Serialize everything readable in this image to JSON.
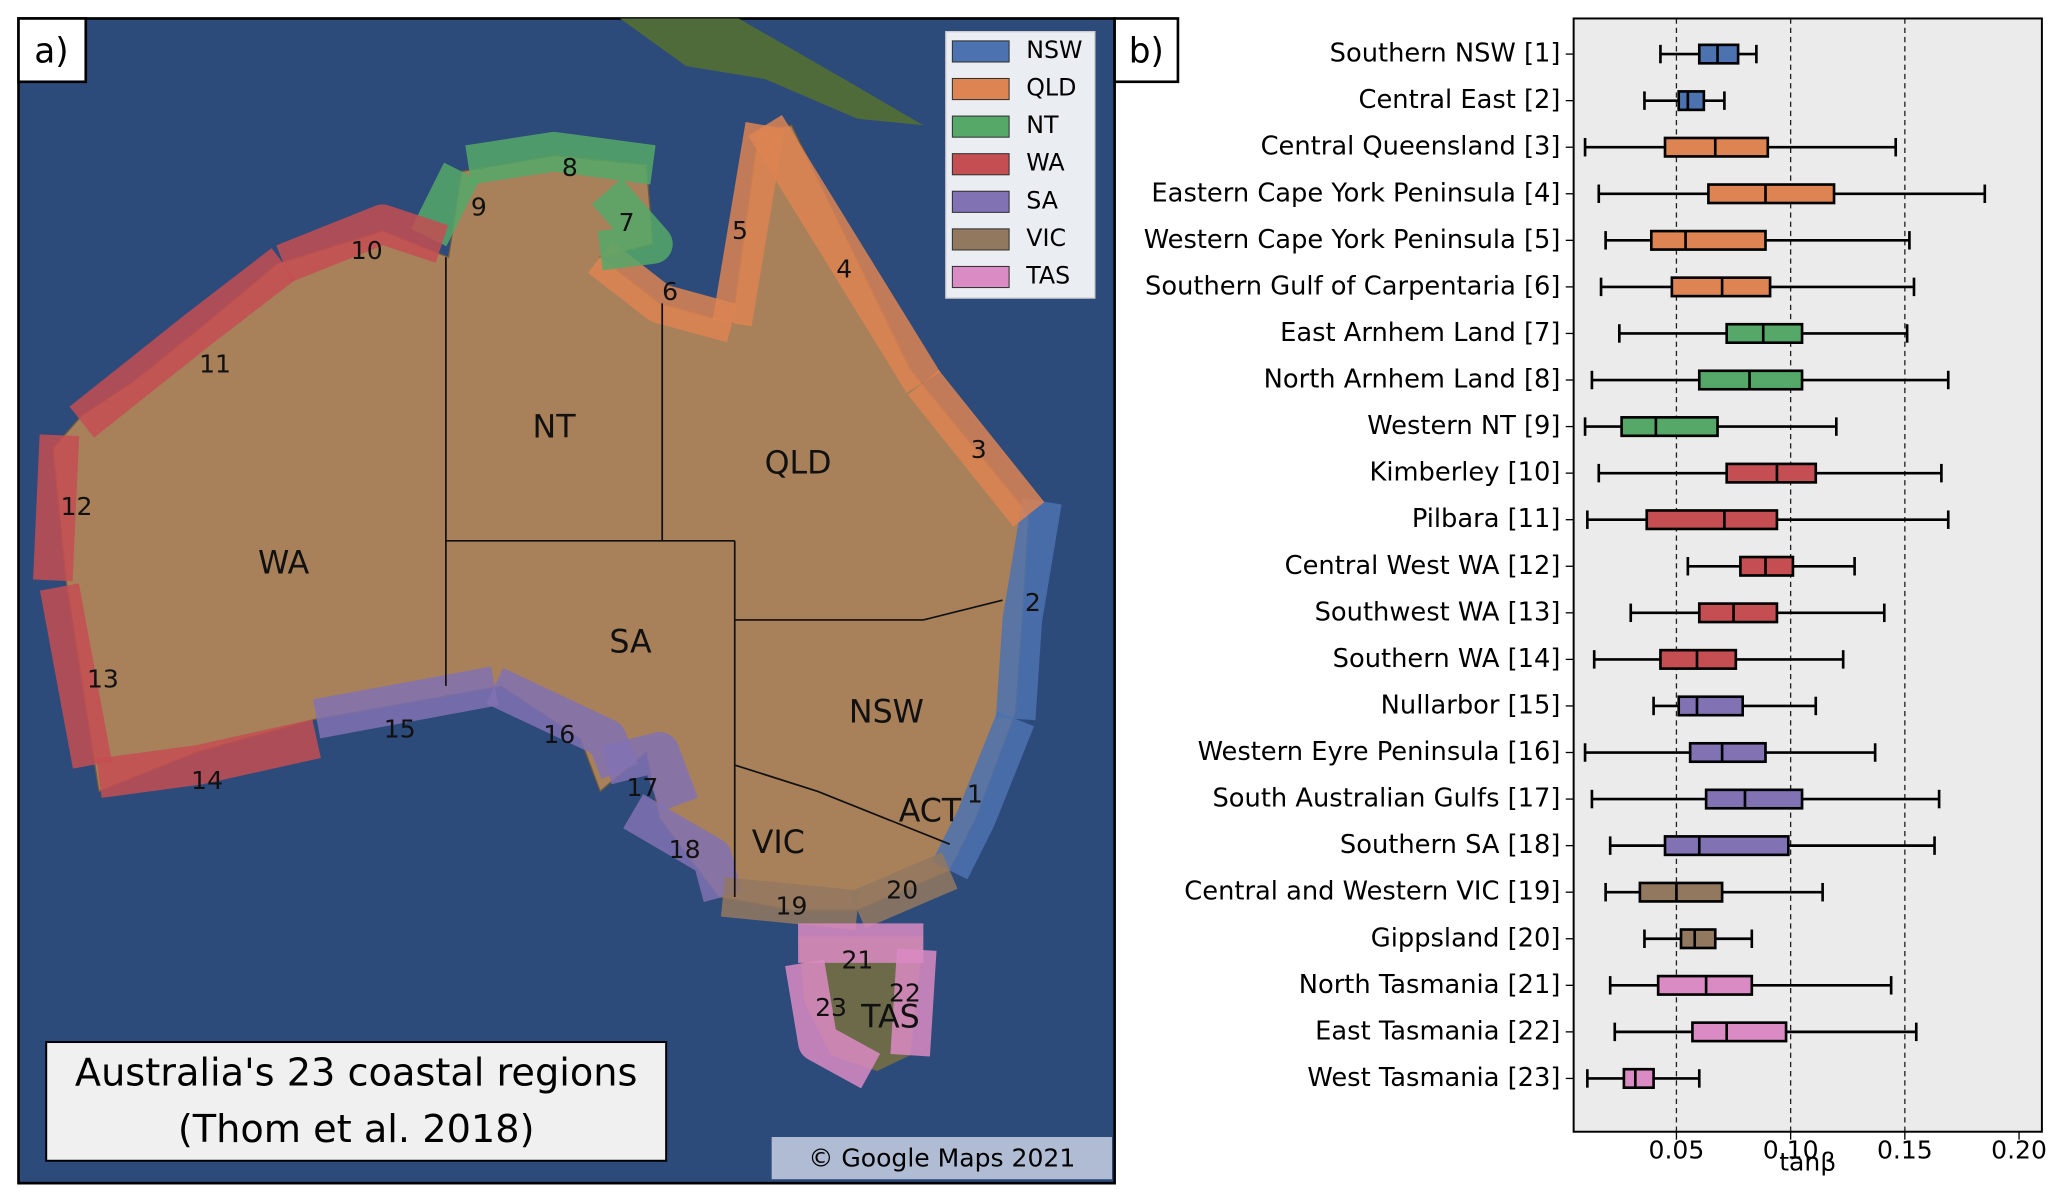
{
  "panel_a": {
    "label": "a)",
    "legend": [
      {
        "name": "NSW",
        "color": "#4c72b0"
      },
      {
        "name": "QLD",
        "color": "#dd8452"
      },
      {
        "name": "NT",
        "color": "#55a868"
      },
      {
        "name": "WA",
        "color": "#c44e52"
      },
      {
        "name": "SA",
        "color": "#8172b3"
      },
      {
        "name": "VIC",
        "color": "#937860"
      },
      {
        "name": "TAS",
        "color": "#da8bc3"
      }
    ],
    "states": [
      "NT",
      "QLD",
      "WA",
      "SA",
      "NSW",
      "VIC",
      "ACT",
      "TAS"
    ],
    "regions": [
      {
        "label": "1",
        "color": "#4c72b0"
      },
      {
        "label": "2",
        "color": "#4c72b0"
      },
      {
        "label": "3",
        "color": "#dd8452"
      },
      {
        "label": "4",
        "color": "#dd8452"
      },
      {
        "label": "5",
        "color": "#dd8452"
      },
      {
        "label": "6",
        "color": "#dd8452"
      },
      {
        "label": "7",
        "color": "#55a868"
      },
      {
        "label": "8",
        "color": "#55a868"
      },
      {
        "label": "9",
        "color": "#55a868"
      },
      {
        "label": "10",
        "color": "#c44e52"
      },
      {
        "label": "11",
        "color": "#c44e52"
      },
      {
        "label": "12",
        "color": "#c44e52"
      },
      {
        "label": "13",
        "color": "#c44e52"
      },
      {
        "label": "14",
        "color": "#c44e52"
      },
      {
        "label": "15",
        "color": "#8172b3"
      },
      {
        "label": "16",
        "color": "#8172b3"
      },
      {
        "label": "17",
        "color": "#8172b3"
      },
      {
        "label": "18",
        "color": "#8172b3"
      },
      {
        "label": "19",
        "color": "#937860"
      },
      {
        "label": "20",
        "color": "#937860"
      },
      {
        "label": "21",
        "color": "#da8bc3"
      },
      {
        "label": "22",
        "color": "#da8bc3"
      },
      {
        "label": "23",
        "color": "#da8bc3"
      }
    ],
    "caption": [
      "Australia's 23 coastal regions",
      "(Thom et al. 2018)"
    ],
    "credit": "© Google Maps 2021"
  },
  "chart_data": {
    "type": "boxplot",
    "panel_label": "b)",
    "categories": [
      "Southern NSW [1]",
      "Central East [2]",
      "Central Queensland [3]",
      "Eastern Cape York Peninsula [4]",
      "Western Cape York Peninsula [5]",
      "Southern Gulf of Carpentaria [6]",
      "East Arnhem Land [7]",
      "North Arnhem Land [8]",
      "Western NT [9]",
      "Kimberley [10]",
      "Pilbara [11]",
      "Central West WA [12]",
      "Southwest WA [13]",
      "Southern WA [14]",
      "Nullarbor [15]",
      "Western Eyre Peninsula [16]",
      "South Australian Gulfs [17]",
      "Southern SA [18]",
      "Central and Western VIC [19]",
      "Gippsland [20]",
      "North Tasmania [21]",
      "East Tasmania [22]",
      "West Tasmania [23]"
    ],
    "whislo": [
      0.043,
      0.036,
      0.01,
      0.016,
      0.019,
      0.017,
      0.025,
      0.013,
      0.01,
      0.016,
      0.011,
      0.055,
      0.03,
      0.014,
      0.04,
      0.01,
      0.013,
      0.021,
      0.019,
      0.036,
      0.021,
      0.023,
      0.011
    ],
    "q1": [
      0.06,
      0.051,
      0.045,
      0.064,
      0.039,
      0.048,
      0.072,
      0.06,
      0.026,
      0.072,
      0.037,
      0.078,
      0.06,
      0.043,
      0.051,
      0.056,
      0.063,
      0.045,
      0.034,
      0.052,
      0.042,
      0.057,
      0.027
    ],
    "med": [
      0.068,
      0.055,
      0.067,
      0.089,
      0.054,
      0.07,
      0.088,
      0.082,
      0.041,
      0.094,
      0.071,
      0.089,
      0.075,
      0.059,
      0.059,
      0.07,
      0.08,
      0.06,
      0.05,
      0.058,
      0.063,
      0.072,
      0.032
    ],
    "q3": [
      0.077,
      0.062,
      0.09,
      0.119,
      0.089,
      0.091,
      0.105,
      0.105,
      0.068,
      0.111,
      0.094,
      0.101,
      0.094,
      0.076,
      0.079,
      0.089,
      0.105,
      0.099,
      0.07,
      0.067,
      0.083,
      0.098,
      0.04
    ],
    "whishi": [
      0.085,
      0.071,
      0.146,
      0.185,
      0.152,
      0.154,
      0.151,
      0.169,
      0.12,
      0.166,
      0.169,
      0.128,
      0.141,
      0.123,
      0.111,
      0.137,
      0.165,
      0.163,
      0.114,
      0.083,
      0.144,
      0.155,
      0.06
    ],
    "colors": [
      "#4c72b0",
      "#4c72b0",
      "#dd8452",
      "#dd8452",
      "#dd8452",
      "#dd8452",
      "#55a868",
      "#55a868",
      "#55a868",
      "#c44e52",
      "#c44e52",
      "#c44e52",
      "#c44e52",
      "#c44e52",
      "#8172b3",
      "#8172b3",
      "#8172b3",
      "#8172b3",
      "#937860",
      "#937860",
      "#da8bc3",
      "#da8bc3",
      "#da8bc3"
    ],
    "xlabel": "tanβ",
    "xlim": [
      0.005,
      0.21
    ],
    "xticks": [
      0.05,
      {
        "value": 0.1,
        "label": "0.10"
      },
      0.15,
      {
        "value": 0.2,
        "label": "0.20"
      }
    ],
    "vlines": [
      0.05,
      0.1,
      0.15
    ],
    "background": "#ebebeb"
  }
}
